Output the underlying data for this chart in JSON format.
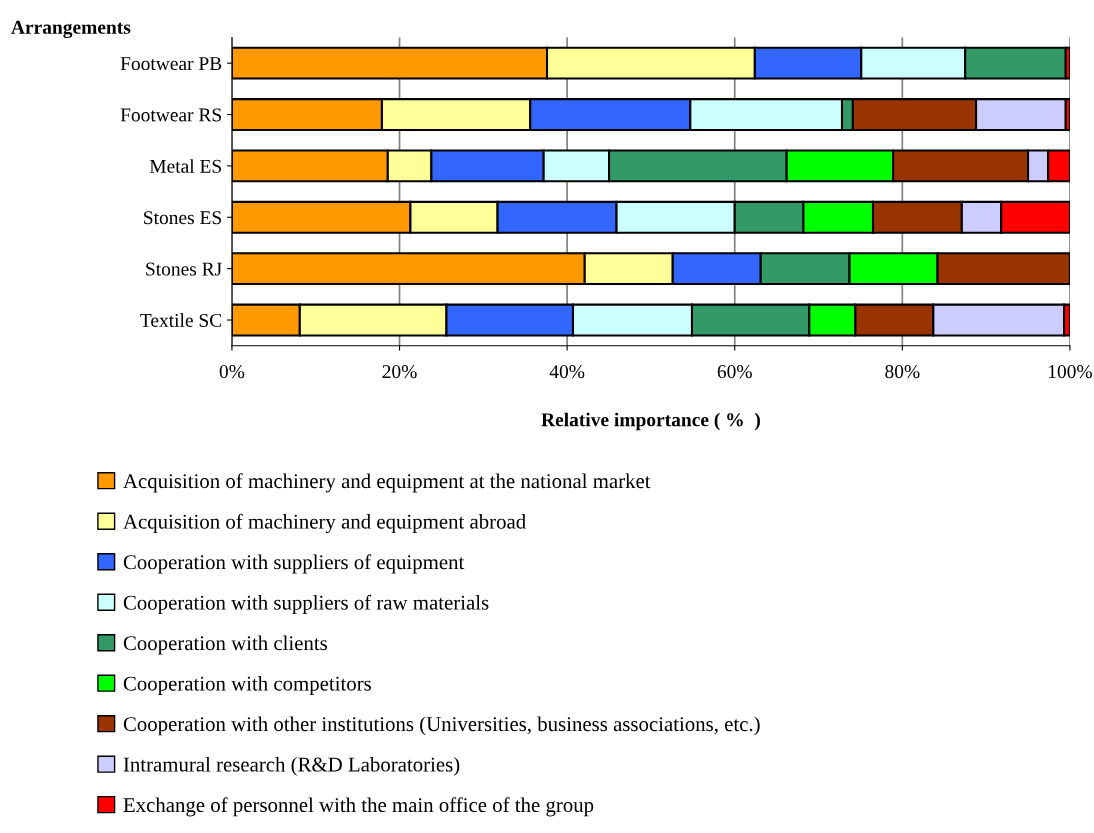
{
  "chart_data": {
    "type": "bar",
    "orientation": "horizontal",
    "stacked": true,
    "ylabel": "Arrangements",
    "xlabel": "Relative importance ( %  )",
    "categories": [
      "Footwear PB",
      "Footwear RS",
      "Metal ES",
      "Stones ES",
      "Stones RJ",
      "Textile SC"
    ],
    "series": [
      {
        "name": "Acquisition of machinery and equipment at the national market",
        "color": "#ff9900",
        "values": [
          37.6,
          17.9,
          18.6,
          21.3,
          42.1,
          8.1
        ]
      },
      {
        "name": "Acquisition of machinery and equipment abroad",
        "color": "#ffff99",
        "values": [
          24.8,
          17.7,
          5.2,
          10.4,
          10.5,
          17.5
        ]
      },
      {
        "name": "Cooperation with suppliers of equipment",
        "color": "#3366ff",
        "values": [
          12.7,
          19.1,
          13.4,
          14.2,
          10.5,
          15.1
        ]
      },
      {
        "name": "Cooperation with suppliers of raw materials",
        "color": "#ccffff",
        "values": [
          12.4,
          18.1,
          7.8,
          14.1,
          null,
          14.2
        ]
      },
      {
        "name": "Cooperation with clients",
        "color": "#339966",
        "values": [
          12.0,
          1.3,
          21.2,
          8.2,
          10.6,
          14.0
        ]
      },
      {
        "name": "Cooperation with competitors",
        "color": "#00ff00",
        "values": [
          null,
          null,
          12.7,
          8.3,
          10.5,
          5.5
        ]
      },
      {
        "name": "Cooperation with other institutions (Universities, business associations, etc.)",
        "color": "#993300",
        "values": [
          null,
          14.7,
          16.1,
          10.6,
          15.8,
          9.3
        ]
      },
      {
        "name": "Intramural research (R&D Laboratories)",
        "color": "#ccccff",
        "values": [
          null,
          10.7,
          2.4,
          4.7,
          null,
          15.6
        ]
      },
      {
        "name": "Exchange of personnel with the main office of the group",
        "color": "#ff0000",
        "values": [
          0.5,
          0.5,
          2.6,
          8.2,
          null,
          0.7
        ]
      }
    ],
    "xlim": [
      0,
      100
    ],
    "xticks": [
      {
        "value": 0,
        "label": "0%"
      },
      {
        "value": 20,
        "label": "20%"
      },
      {
        "value": 40,
        "label": "40%"
      },
      {
        "value": 60,
        "label": "60%"
      },
      {
        "value": 80,
        "label": "80%"
      },
      {
        "value": 100,
        "label": "100%"
      }
    ],
    "grid": "x",
    "legend": "bottom"
  }
}
